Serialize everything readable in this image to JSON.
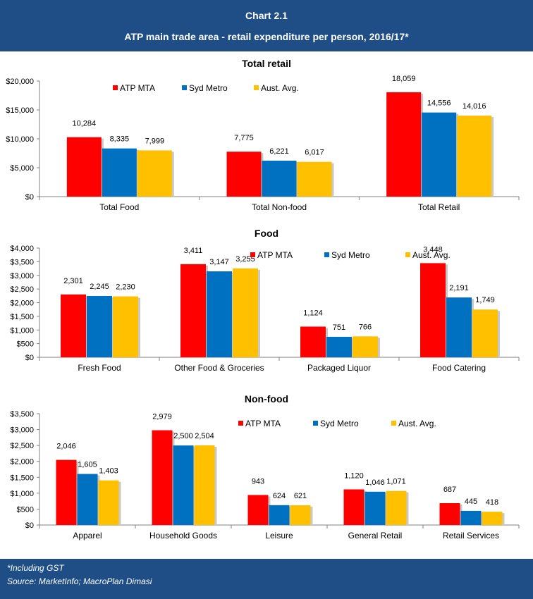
{
  "header": {
    "title": "Chart 2.1",
    "subtitle": "ATP main trade area - retail expenditure per person, 2016/17*"
  },
  "footer": {
    "note": "*Including GST",
    "source": "Source: MarketInfo; MacroPlan Dimasi"
  },
  "colors": {
    "ATP MTA": "#ff0000",
    "Syd Metro": "#0070c0",
    "Aust. Avg.": "#ffc000"
  },
  "chart_data": [
    {
      "type": "bar",
      "title": "Total retail",
      "categories": [
        "Total Food",
        "Total Non-food",
        "Total Retail"
      ],
      "series": [
        {
          "name": "ATP MTA",
          "values": [
            10284,
            7775,
            18059
          ]
        },
        {
          "name": "Syd Metro",
          "values": [
            8335,
            6221,
            14556
          ]
        },
        {
          "name": "Aust. Avg.",
          "values": [
            7999,
            6017,
            14016
          ]
        }
      ],
      "ylim": [
        0,
        20000
      ],
      "yticks": [
        "$0",
        "$5,000",
        "$10,000",
        "$15,000",
        "$20,000"
      ],
      "data_labels": [
        [
          "10,284",
          "7,775",
          "18,059"
        ],
        [
          "8,335",
          "6,221",
          "14,556"
        ],
        [
          "7,999",
          "6,017",
          "14,016"
        ]
      ],
      "legend": "top-left",
      "grid": false
    },
    {
      "type": "bar",
      "title": "Food",
      "categories": [
        "Fresh Food",
        "Other Food & Groceries",
        "Packaged Liquor",
        "Food Catering"
      ],
      "series": [
        {
          "name": "ATP MTA",
          "values": [
            2301,
            3411,
            1124,
            3448
          ]
        },
        {
          "name": "Syd Metro",
          "values": [
            2245,
            3147,
            751,
            2191
          ]
        },
        {
          "name": "Aust. Avg.",
          "values": [
            2230,
            3255,
            766,
            1749
          ]
        }
      ],
      "ylim": [
        0,
        4000
      ],
      "yticks": [
        "$0",
        "$500",
        "$1,000",
        "$1,500",
        "$2,000",
        "$2,500",
        "$3,000",
        "$3,500",
        "$4,000"
      ],
      "data_labels": [
        [
          "2,301",
          "3,411",
          "1,124",
          "3,448"
        ],
        [
          "2,245",
          "3,147",
          "751",
          "2,191"
        ],
        [
          "2,230",
          "3,255",
          "766",
          "1,749"
        ]
      ],
      "legend": "top-right",
      "grid": false
    },
    {
      "type": "bar",
      "title": "Non-food",
      "categories": [
        "Apparel",
        "Household Goods",
        "Leisure",
        "General Retail",
        "Retail Services"
      ],
      "series": [
        {
          "name": "ATP MTA",
          "values": [
            2046,
            2979,
            943,
            1120,
            687
          ]
        },
        {
          "name": "Syd Metro",
          "values": [
            1605,
            2500,
            624,
            1046,
            445
          ]
        },
        {
          "name": "Aust. Avg.",
          "values": [
            1403,
            2504,
            621,
            1071,
            418
          ]
        }
      ],
      "ylim": [
        0,
        3500
      ],
      "yticks": [
        "$0",
        "$500",
        "$1,000",
        "$1,500",
        "$2,000",
        "$2,500",
        "$3,000",
        "$3,500"
      ],
      "data_labels": [
        [
          "2,046",
          "2,979",
          "943",
          "1,120",
          "687"
        ],
        [
          "1,605",
          "2,500",
          "624",
          "1,046",
          "445"
        ],
        [
          "1,403",
          "2,504",
          "621",
          "1,071",
          "418"
        ]
      ],
      "legend": "top-right",
      "grid": false
    }
  ]
}
